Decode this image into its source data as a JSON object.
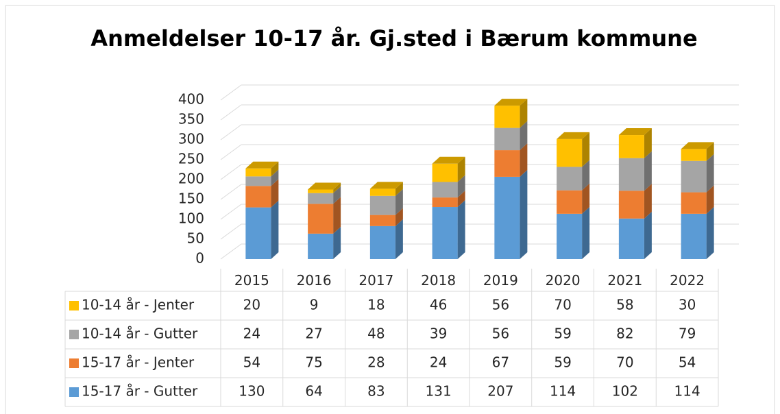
{
  "chart_data": {
    "type": "bar",
    "stacked": true,
    "title": "Anmeldelser 10-17 år. Gj.sted i Bærum kommune",
    "categories": [
      "2015",
      "2016",
      "2017",
      "2018",
      "2019",
      "2020",
      "2021",
      "2022"
    ],
    "series": [
      {
        "name": "15-17 år - Gutter",
        "color": "#5b9bd5",
        "values": [
          130,
          64,
          83,
          131,
          207,
          114,
          102,
          114
        ]
      },
      {
        "name": "15-17 år - Jenter",
        "color": "#ed7d31",
        "values": [
          54,
          75,
          28,
          24,
          67,
          59,
          70,
          54
        ]
      },
      {
        "name": "10-14 år - Gutter",
        "color": "#a5a5a5",
        "values": [
          24,
          27,
          48,
          39,
          56,
          59,
          82,
          79
        ]
      },
      {
        "name": "10-14 år - Jenter",
        "color": "#ffc000",
        "values": [
          20,
          9,
          18,
          46,
          56,
          70,
          58,
          30
        ]
      }
    ],
    "ylim": [
      0,
      400
    ],
    "yticks": [
      0,
      50,
      100,
      150,
      200,
      250,
      300,
      350,
      400
    ],
    "grid": true
  }
}
